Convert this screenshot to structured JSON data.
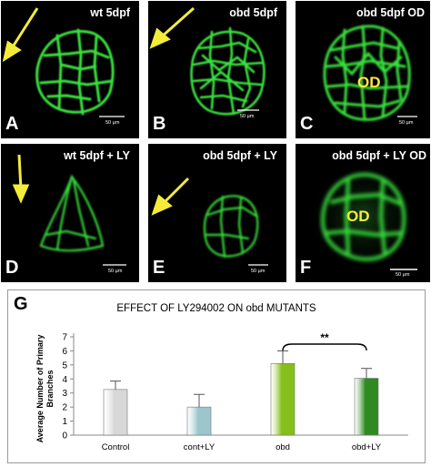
{
  "panels": [
    {
      "id": "A",
      "letter": "A",
      "title": "wt 5dpf",
      "scale_label": "50 µm",
      "od": "",
      "arrow": true
    },
    {
      "id": "B",
      "letter": "B",
      "title": "obd 5dpf",
      "scale_label": "50 µm",
      "od": "",
      "arrow": true
    },
    {
      "id": "C",
      "letter": "C",
      "title": "obd 5dpf OD",
      "scale_label": "50 µm",
      "od": "OD",
      "arrow": false
    },
    {
      "id": "D",
      "letter": "D",
      "title": "wt 5dpf + LY",
      "scale_label": "50 µm",
      "od": "",
      "arrow": true
    },
    {
      "id": "E",
      "letter": "E",
      "title": "obd 5dpf + LY",
      "scale_label": "50 µm",
      "od": "",
      "arrow": true
    },
    {
      "id": "F",
      "letter": "F",
      "title": "obd 5dpf + LY OD",
      "scale_label": "50 µm",
      "od": "OD",
      "arrow": false
    }
  ],
  "colors": {
    "fluorescence": "#39e03c",
    "arrow": "#f4ec3a",
    "panel_bg": "#000000"
  },
  "chart": {
    "letter": "G",
    "significance": "**"
  },
  "chart_data": {
    "type": "bar",
    "title": "EFFECT OF LY294002 ON obd MUTANTS",
    "ylabel": "Average Number of Primary Branches",
    "xlabel": "",
    "categories": [
      "Control",
      "cont+LY",
      "obd",
      "obd+LY"
    ],
    "values": [
      3.25,
      2.0,
      5.1,
      4.05
    ],
    "errors": [
      0.6,
      0.9,
      0.9,
      0.7
    ],
    "bar_colors": [
      "#d8d8d8",
      "#9cc6cc",
      "#86bf1c",
      "#2f8a22"
    ],
    "ylim": [
      0,
      7
    ],
    "yticks": [
      0,
      1,
      2,
      3,
      4,
      5,
      6,
      7
    ],
    "significance_between": [
      "obd",
      "obd+LY"
    ],
    "grid": false,
    "legend": "none"
  }
}
